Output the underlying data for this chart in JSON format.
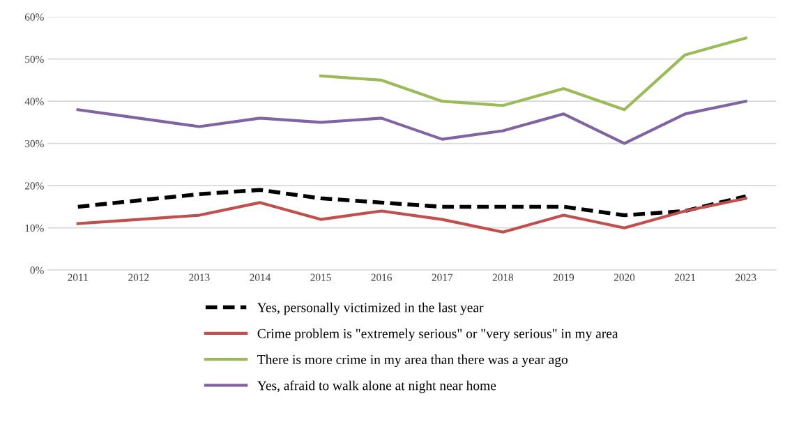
{
  "chart_data": {
    "type": "line",
    "categories": [
      "2011",
      "2012",
      "2013",
      "2014",
      "2015",
      "2016",
      "2017",
      "2018",
      "2019",
      "2020",
      "2021",
      "2023"
    ],
    "series": [
      {
        "name": "Yes, personally victimized in the last year",
        "color": "#000000",
        "line_style": "dashed",
        "values": [
          15,
          16.5,
          18,
          19,
          17,
          16,
          15,
          15,
          15,
          13,
          14,
          17.5
        ]
      },
      {
        "name": "Crime problem is \"extremely serious\" or \"very serious\" in my area",
        "color": "#c0504d",
        "line_style": "solid",
        "values": [
          11,
          12,
          13,
          16,
          12,
          14,
          12,
          9,
          13,
          10,
          14,
          17
        ]
      },
      {
        "name": "There is more crime in my area than there was a year ago",
        "color": "#9bbb59",
        "line_style": "solid",
        "values": [
          null,
          null,
          null,
          null,
          46,
          45,
          40,
          39,
          43,
          38,
          51,
          55
        ]
      },
      {
        "name": "Yes, afraid to walk alone at night near home",
        "color": "#8064a2",
        "line_style": "solid",
        "values": [
          38,
          36,
          34,
          36,
          35,
          36,
          31,
          33,
          37,
          30,
          37,
          40
        ]
      }
    ],
    "ylim": [
      0,
      60
    ],
    "yticks": [
      {
        "value": 0,
        "label": "0%"
      },
      {
        "value": 10,
        "label": "10%"
      },
      {
        "value": 20,
        "label": "20%"
      },
      {
        "value": 30,
        "label": "30%"
      },
      {
        "value": 40,
        "label": "40%"
      },
      {
        "value": 50,
        "label": "50%"
      },
      {
        "value": 60,
        "label": "60%"
      }
    ],
    "grid": "y",
    "legend": "bottom",
    "marker": "none"
  }
}
